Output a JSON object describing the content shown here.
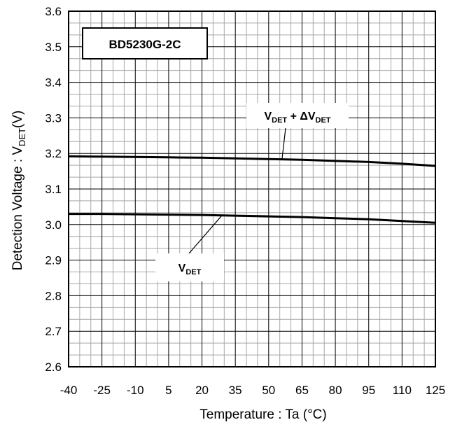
{
  "chart_data": {
    "type": "line",
    "title": "BD5230G-2C",
    "xlabel": "Temperature : Ta (°C)",
    "ylabel_main": "Detection Voltage : V",
    "ylabel_sub": "DET",
    "ylabel_tail": "(V)",
    "xlim": [
      -40,
      125
    ],
    "ylim": [
      2.6,
      3.6
    ],
    "x_ticks": [
      "-40",
      "-25",
      "-10",
      "5",
      "20",
      "35",
      "50",
      "65",
      "80",
      "95",
      "110",
      "125"
    ],
    "y_ticks": [
      "3.6",
      "3.5",
      "3.4",
      "3.3",
      "3.2",
      "3.1",
      "3.0",
      "2.9",
      "2.8",
      "2.7",
      "2.6"
    ],
    "grid": true,
    "series": [
      {
        "label_main": "V",
        "label_sub": "DET",
        "label_mid": " + ΔV",
        "label_sub2": "DET",
        "x": [
          -40,
          -25,
          -10,
          5,
          20,
          35,
          50,
          65,
          80,
          95,
          110,
          125
        ],
        "y": [
          3.192,
          3.191,
          3.19,
          3.189,
          3.188,
          3.186,
          3.184,
          3.182,
          3.179,
          3.176,
          3.171,
          3.165
        ]
      },
      {
        "label_main": "V",
        "label_sub": "DET",
        "x": [
          -40,
          -25,
          -10,
          5,
          20,
          35,
          50,
          65,
          80,
          95,
          110,
          125
        ],
        "y": [
          3.03,
          3.03,
          3.029,
          3.028,
          3.027,
          3.025,
          3.023,
          3.021,
          3.018,
          3.015,
          3.01,
          3.005
        ]
      }
    ]
  }
}
